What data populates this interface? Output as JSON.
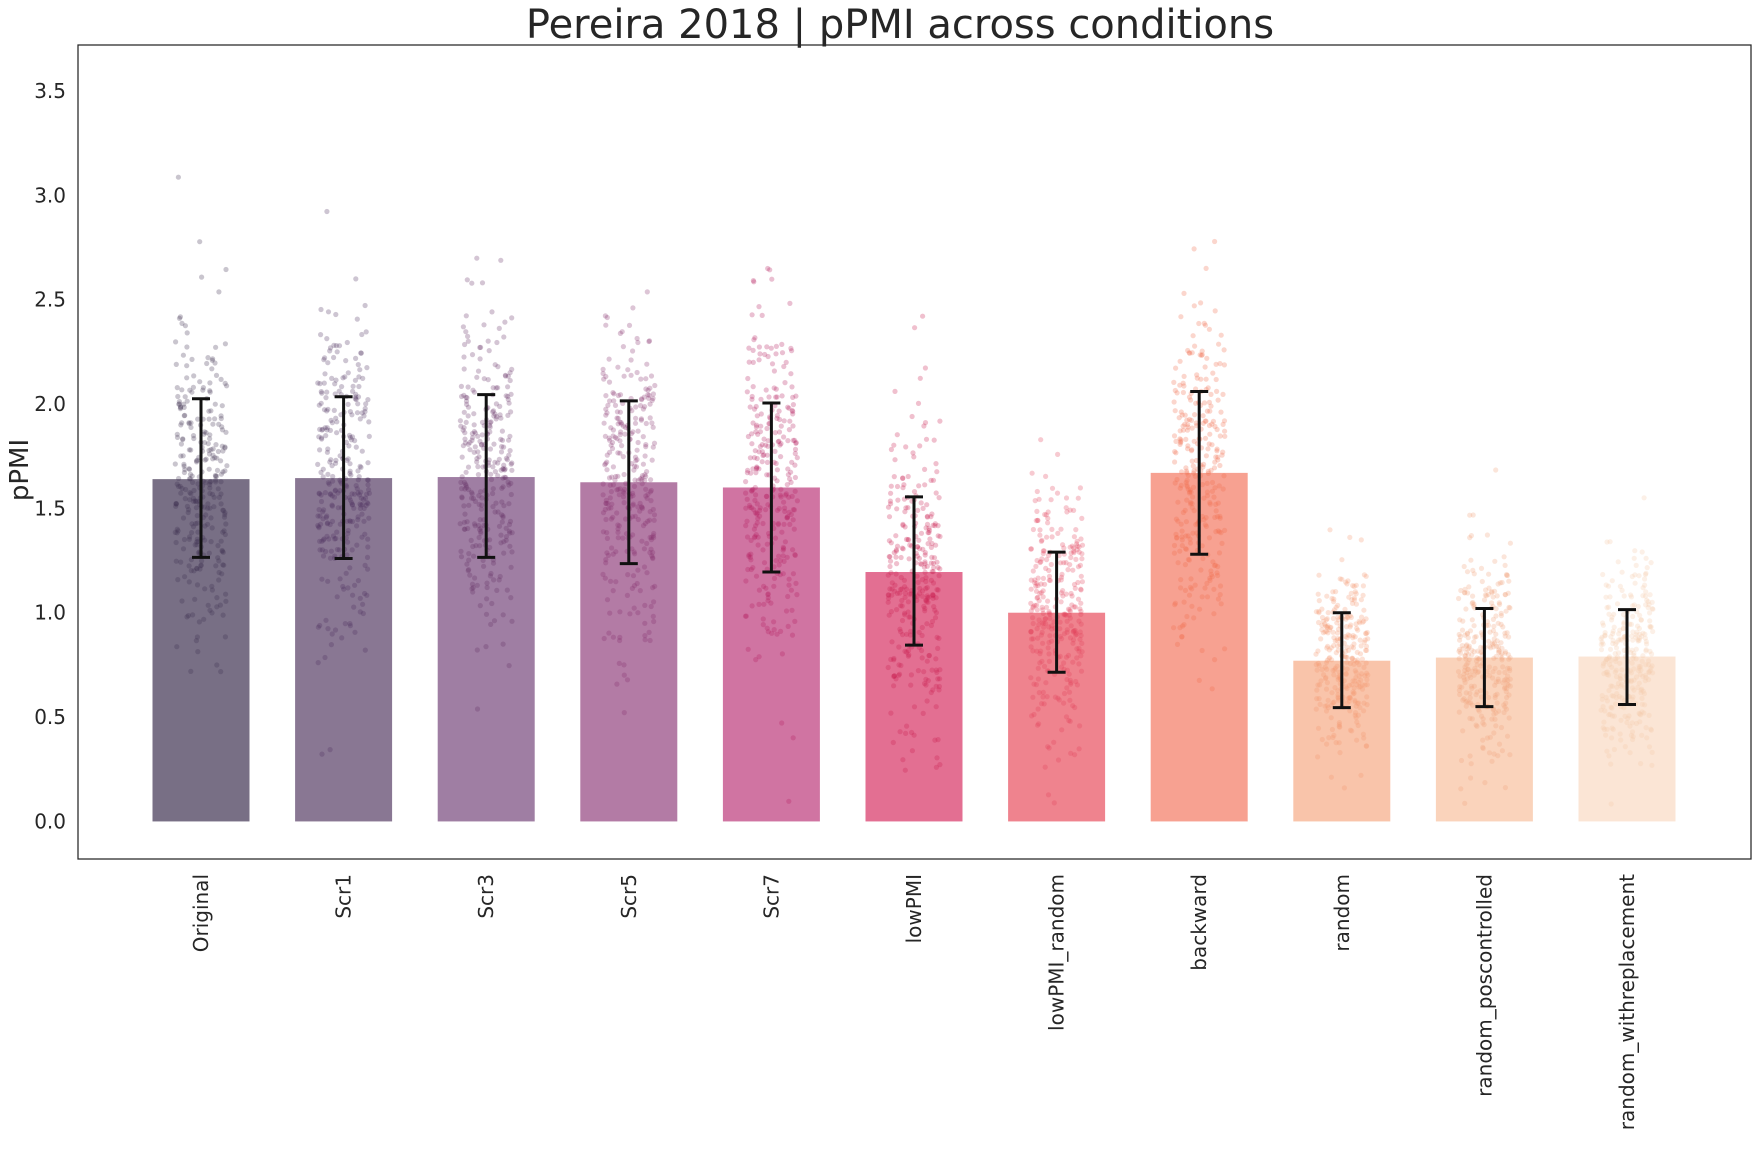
{
  "chart_data": {
    "type": "bar",
    "title": "Pereira 2018 | pPMI across conditions",
    "ylabel": "pPMI",
    "xlabel": "",
    "ylim": [
      -0.18,
      3.72
    ],
    "yticks": [
      0.0,
      0.5,
      1.0,
      1.5,
      2.0,
      2.5,
      3.0,
      3.5
    ],
    "ytick_labels": [
      "0.0",
      "0.5",
      "1.0",
      "1.5",
      "2.0",
      "2.5",
      "3.0",
      "3.5"
    ],
    "grid": false,
    "legend": "none",
    "categories": [
      "Original",
      "Scr1",
      "Scr3",
      "Scr5",
      "Scr7",
      "lowPMI",
      "lowPMI_random",
      "backward",
      "random",
      "random_poscontrolled",
      "random_withreplacement"
    ],
    "values": [
      1.64,
      1.645,
      1.65,
      1.625,
      1.6,
      1.195,
      1.0,
      1.67,
      0.77,
      0.785,
      0.79
    ],
    "error_low": [
      1.265,
      1.26,
      1.265,
      1.235,
      1.195,
      0.845,
      0.715,
      1.28,
      0.545,
      0.55,
      0.56
    ],
    "error_high": [
      2.025,
      2.035,
      2.045,
      2.015,
      2.005,
      1.555,
      1.29,
      2.06,
      1.0,
      1.02,
      1.015
    ],
    "spread_sd": [
      0.38,
      0.39,
      0.39,
      0.39,
      0.4,
      0.36,
      0.29,
      0.39,
      0.23,
      0.235,
      0.23
    ],
    "points_per_condition": 300,
    "colors": [
      "#4b3f5c",
      "#624a6f",
      "#7f5384",
      "#9a4f87",
      "#c04683",
      "#d93f6d",
      "#e95a68",
      "#f4826c",
      "#f7b08e",
      "#f8c4a4",
      "#f9dcc7"
    ],
    "point_colors": [
      "#3c2e4e",
      "#4d2d5c",
      "#652f66",
      "#842d6a",
      "#b21d5f",
      "#c81d4f",
      "#e24158",
      "#f26b4c",
      "#f49670",
      "#f1a37b",
      "#f6c8a8"
    ]
  }
}
